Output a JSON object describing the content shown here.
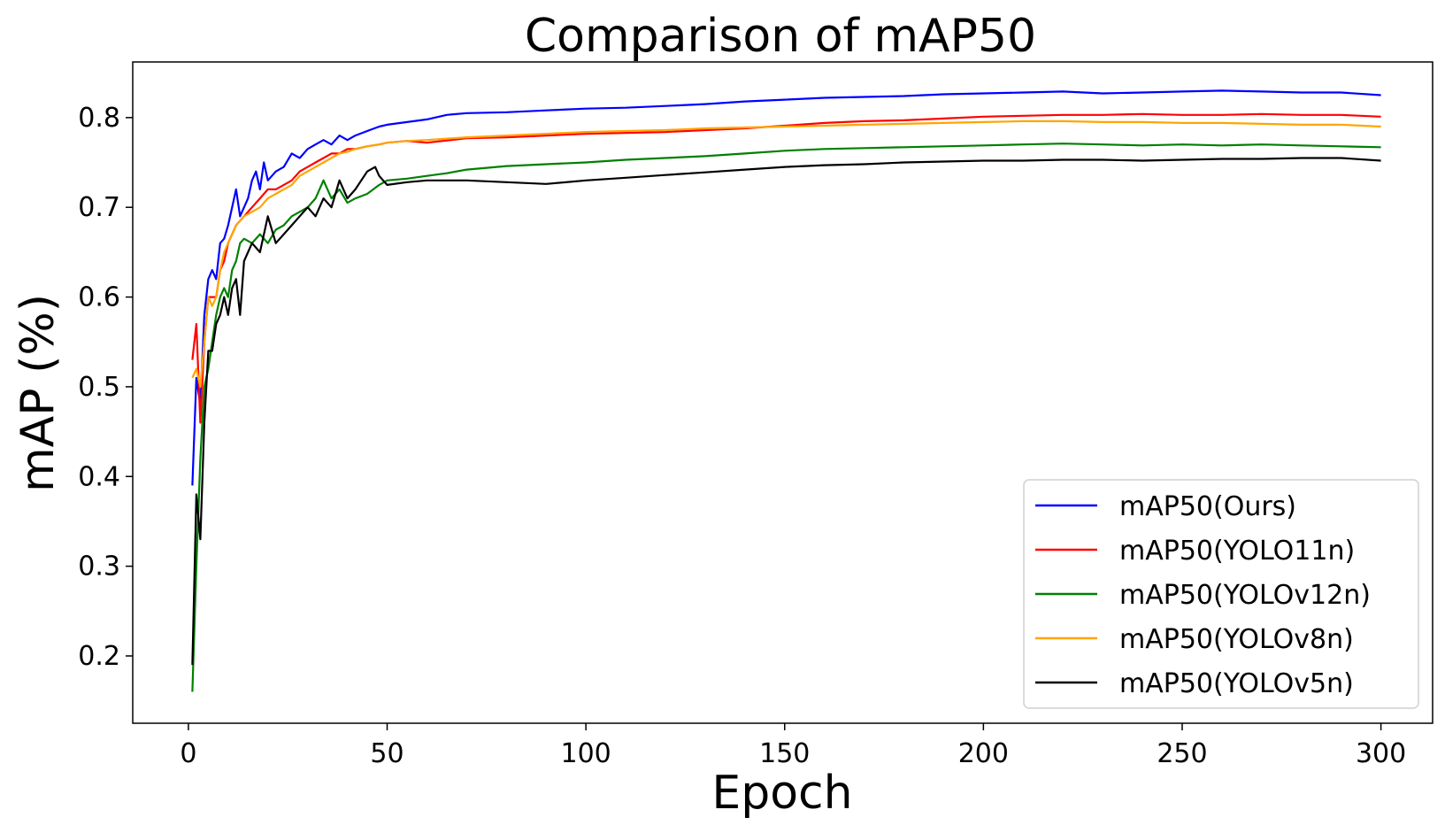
{
  "chart_data": {
    "type": "line",
    "title": "Comparison of mAP50",
    "xlabel": "Epoch",
    "ylabel": "mAP (%)",
    "xlim": [
      -14,
      313
    ],
    "ylim": [
      0.125,
      0.862
    ],
    "xticks": [
      0,
      50,
      100,
      150,
      200,
      250,
      300
    ],
    "yticks": [
      0.2,
      0.3,
      0.4,
      0.5,
      0.6,
      0.7,
      0.8
    ],
    "grid": false,
    "legend_position": "lower-right",
    "series": [
      {
        "name": "mAP50(Ours)",
        "color": "#0000ff",
        "points": [
          [
            1,
            0.39
          ],
          [
            2,
            0.51
          ],
          [
            3,
            0.48
          ],
          [
            4,
            0.58
          ],
          [
            5,
            0.62
          ],
          [
            6,
            0.63
          ],
          [
            7,
            0.62
          ],
          [
            8,
            0.66
          ],
          [
            9,
            0.665
          ],
          [
            10,
            0.68
          ],
          [
            11,
            0.7
          ],
          [
            12,
            0.72
          ],
          [
            13,
            0.69
          ],
          [
            14,
            0.7
          ],
          [
            15,
            0.71
          ],
          [
            16,
            0.73
          ],
          [
            17,
            0.74
          ],
          [
            18,
            0.72
          ],
          [
            19,
            0.75
          ],
          [
            20,
            0.73
          ],
          [
            22,
            0.74
          ],
          [
            24,
            0.745
          ],
          [
            26,
            0.76
          ],
          [
            28,
            0.755
          ],
          [
            30,
            0.765
          ],
          [
            32,
            0.77
          ],
          [
            34,
            0.775
          ],
          [
            36,
            0.77
          ],
          [
            38,
            0.78
          ],
          [
            40,
            0.775
          ],
          [
            42,
            0.78
          ],
          [
            45,
            0.785
          ],
          [
            48,
            0.79
          ],
          [
            50,
            0.792
          ],
          [
            55,
            0.795
          ],
          [
            60,
            0.798
          ],
          [
            65,
            0.803
          ],
          [
            70,
            0.805
          ],
          [
            80,
            0.806
          ],
          [
            90,
            0.808
          ],
          [
            100,
            0.81
          ],
          [
            110,
            0.811
          ],
          [
            120,
            0.813
          ],
          [
            130,
            0.815
          ],
          [
            140,
            0.818
          ],
          [
            150,
            0.82
          ],
          [
            160,
            0.822
          ],
          [
            170,
            0.823
          ],
          [
            180,
            0.824
          ],
          [
            190,
            0.826
          ],
          [
            200,
            0.827
          ],
          [
            210,
            0.828
          ],
          [
            220,
            0.829
          ],
          [
            230,
            0.827
          ],
          [
            240,
            0.828
          ],
          [
            250,
            0.829
          ],
          [
            260,
            0.83
          ],
          [
            270,
            0.829
          ],
          [
            280,
            0.828
          ],
          [
            290,
            0.828
          ],
          [
            300,
            0.825
          ]
        ]
      },
      {
        "name": "mAP50(YOLO11n)",
        "color": "#ff0000",
        "points": [
          [
            1,
            0.53
          ],
          [
            2,
            0.57
          ],
          [
            3,
            0.46
          ],
          [
            4,
            0.55
          ],
          [
            5,
            0.6
          ],
          [
            6,
            0.6
          ],
          [
            7,
            0.6
          ],
          [
            8,
            0.63
          ],
          [
            9,
            0.64
          ],
          [
            10,
            0.66
          ],
          [
            12,
            0.68
          ],
          [
            14,
            0.69
          ],
          [
            16,
            0.7
          ],
          [
            18,
            0.71
          ],
          [
            20,
            0.72
          ],
          [
            22,
            0.72
          ],
          [
            24,
            0.725
          ],
          [
            26,
            0.73
          ],
          [
            28,
            0.74
          ],
          [
            30,
            0.745
          ],
          [
            32,
            0.75
          ],
          [
            34,
            0.755
          ],
          [
            36,
            0.76
          ],
          [
            38,
            0.76
          ],
          [
            40,
            0.765
          ],
          [
            42,
            0.765
          ],
          [
            45,
            0.768
          ],
          [
            48,
            0.77
          ],
          [
            50,
            0.772
          ],
          [
            55,
            0.774
          ],
          [
            60,
            0.772
          ],
          [
            70,
            0.777
          ],
          [
            80,
            0.778
          ],
          [
            90,
            0.78
          ],
          [
            100,
            0.782
          ],
          [
            110,
            0.783
          ],
          [
            120,
            0.784
          ],
          [
            130,
            0.786
          ],
          [
            140,
            0.788
          ],
          [
            150,
            0.791
          ],
          [
            160,
            0.794
          ],
          [
            170,
            0.796
          ],
          [
            180,
            0.797
          ],
          [
            190,
            0.799
          ],
          [
            200,
            0.801
          ],
          [
            210,
            0.802
          ],
          [
            220,
            0.803
          ],
          [
            230,
            0.803
          ],
          [
            240,
            0.804
          ],
          [
            250,
            0.803
          ],
          [
            260,
            0.803
          ],
          [
            270,
            0.804
          ],
          [
            280,
            0.803
          ],
          [
            290,
            0.803
          ],
          [
            300,
            0.801
          ]
        ]
      },
      {
        "name": "mAP50(YOLOv12n)",
        "color": "#008000",
        "points": [
          [
            1,
            0.16
          ],
          [
            2,
            0.3
          ],
          [
            3,
            0.42
          ],
          [
            4,
            0.5
          ],
          [
            5,
            0.52
          ],
          [
            6,
            0.55
          ],
          [
            7,
            0.58
          ],
          [
            8,
            0.6
          ],
          [
            9,
            0.61
          ],
          [
            10,
            0.6
          ],
          [
            11,
            0.63
          ],
          [
            12,
            0.64
          ],
          [
            13,
            0.66
          ],
          [
            14,
            0.665
          ],
          [
            16,
            0.66
          ],
          [
            18,
            0.67
          ],
          [
            20,
            0.66
          ],
          [
            22,
            0.675
          ],
          [
            24,
            0.68
          ],
          [
            26,
            0.69
          ],
          [
            28,
            0.695
          ],
          [
            30,
            0.7
          ],
          [
            32,
            0.71
          ],
          [
            34,
            0.73
          ],
          [
            36,
            0.71
          ],
          [
            38,
            0.72
          ],
          [
            40,
            0.705
          ],
          [
            42,
            0.71
          ],
          [
            45,
            0.715
          ],
          [
            48,
            0.725
          ],
          [
            50,
            0.73
          ],
          [
            55,
            0.732
          ],
          [
            60,
            0.735
          ],
          [
            65,
            0.738
          ],
          [
            70,
            0.742
          ],
          [
            80,
            0.746
          ],
          [
            90,
            0.748
          ],
          [
            100,
            0.75
          ],
          [
            110,
            0.753
          ],
          [
            120,
            0.755
          ],
          [
            130,
            0.757
          ],
          [
            140,
            0.76
          ],
          [
            150,
            0.763
          ],
          [
            160,
            0.765
          ],
          [
            170,
            0.766
          ],
          [
            180,
            0.767
          ],
          [
            190,
            0.768
          ],
          [
            200,
            0.769
          ],
          [
            210,
            0.77
          ],
          [
            220,
            0.771
          ],
          [
            230,
            0.77
          ],
          [
            240,
            0.769
          ],
          [
            250,
            0.77
          ],
          [
            260,
            0.769
          ],
          [
            270,
            0.77
          ],
          [
            280,
            0.769
          ],
          [
            290,
            0.768
          ],
          [
            300,
            0.767
          ]
        ]
      },
      {
        "name": "mAP50(YOLOv8n)",
        "color": "#ffa500",
        "points": [
          [
            1,
            0.51
          ],
          [
            2,
            0.52
          ],
          [
            3,
            0.5
          ],
          [
            4,
            0.55
          ],
          [
            5,
            0.6
          ],
          [
            6,
            0.59
          ],
          [
            7,
            0.6
          ],
          [
            8,
            0.63
          ],
          [
            9,
            0.65
          ],
          [
            10,
            0.66
          ],
          [
            12,
            0.68
          ],
          [
            14,
            0.69
          ],
          [
            16,
            0.695
          ],
          [
            18,
            0.7
          ],
          [
            20,
            0.71
          ],
          [
            22,
            0.715
          ],
          [
            24,
            0.72
          ],
          [
            26,
            0.725
          ],
          [
            28,
            0.735
          ],
          [
            30,
            0.74
          ],
          [
            32,
            0.745
          ],
          [
            34,
            0.75
          ],
          [
            36,
            0.755
          ],
          [
            38,
            0.76
          ],
          [
            40,
            0.762
          ],
          [
            42,
            0.765
          ],
          [
            45,
            0.768
          ],
          [
            48,
            0.77
          ],
          [
            50,
            0.772
          ],
          [
            55,
            0.774
          ],
          [
            60,
            0.775
          ],
          [
            70,
            0.778
          ],
          [
            80,
            0.78
          ],
          [
            90,
            0.782
          ],
          [
            100,
            0.784
          ],
          [
            110,
            0.785
          ],
          [
            120,
            0.786
          ],
          [
            130,
            0.788
          ],
          [
            140,
            0.789
          ],
          [
            150,
            0.79
          ],
          [
            160,
            0.791
          ],
          [
            170,
            0.792
          ],
          [
            180,
            0.793
          ],
          [
            190,
            0.794
          ],
          [
            200,
            0.795
          ],
          [
            210,
            0.796
          ],
          [
            220,
            0.796
          ],
          [
            230,
            0.795
          ],
          [
            240,
            0.795
          ],
          [
            250,
            0.794
          ],
          [
            260,
            0.794
          ],
          [
            270,
            0.793
          ],
          [
            280,
            0.792
          ],
          [
            290,
            0.792
          ],
          [
            300,
            0.79
          ]
        ]
      },
      {
        "name": "mAP50(YOLOv5n)",
        "color": "#000000",
        "points": [
          [
            1,
            0.19
          ],
          [
            2,
            0.38
          ],
          [
            3,
            0.33
          ],
          [
            4,
            0.46
          ],
          [
            5,
            0.54
          ],
          [
            6,
            0.54
          ],
          [
            7,
            0.57
          ],
          [
            8,
            0.58
          ],
          [
            9,
            0.6
          ],
          [
            10,
            0.58
          ],
          [
            11,
            0.61
          ],
          [
            12,
            0.62
          ],
          [
            13,
            0.58
          ],
          [
            14,
            0.64
          ],
          [
            16,
            0.66
          ],
          [
            18,
            0.65
          ],
          [
            20,
            0.69
          ],
          [
            22,
            0.66
          ],
          [
            24,
            0.67
          ],
          [
            26,
            0.68
          ],
          [
            28,
            0.69
          ],
          [
            30,
            0.7
          ],
          [
            32,
            0.69
          ],
          [
            34,
            0.71
          ],
          [
            36,
            0.7
          ],
          [
            38,
            0.73
          ],
          [
            40,
            0.71
          ],
          [
            42,
            0.72
          ],
          [
            45,
            0.74
          ],
          [
            47,
            0.745
          ],
          [
            48,
            0.735
          ],
          [
            50,
            0.725
          ],
          [
            55,
            0.728
          ],
          [
            60,
            0.73
          ],
          [
            70,
            0.73
          ],
          [
            80,
            0.728
          ],
          [
            90,
            0.726
          ],
          [
            100,
            0.73
          ],
          [
            110,
            0.733
          ],
          [
            120,
            0.736
          ],
          [
            130,
            0.739
          ],
          [
            140,
            0.742
          ],
          [
            150,
            0.745
          ],
          [
            160,
            0.747
          ],
          [
            170,
            0.748
          ],
          [
            180,
            0.75
          ],
          [
            190,
            0.751
          ],
          [
            200,
            0.752
          ],
          [
            210,
            0.752
          ],
          [
            220,
            0.753
          ],
          [
            230,
            0.753
          ],
          [
            240,
            0.752
          ],
          [
            250,
            0.753
          ],
          [
            260,
            0.754
          ],
          [
            270,
            0.754
          ],
          [
            280,
            0.755
          ],
          [
            290,
            0.755
          ],
          [
            300,
            0.752
          ]
        ]
      }
    ]
  }
}
